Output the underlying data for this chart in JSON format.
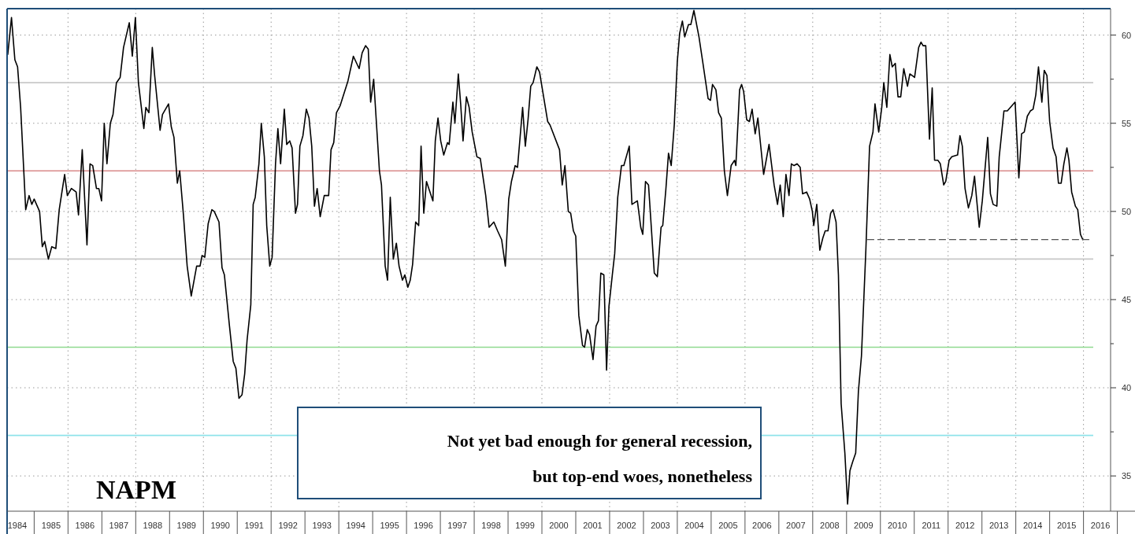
{
  "chart_data": {
    "type": "line",
    "title": "NAPM",
    "annotations": [
      "Not yet bad enough for general recession,",
      "but top-end woes, nonetheless"
    ],
    "xlim": [
      1984.2,
      2016.8
    ],
    "ylim": [
      33,
      61.5
    ],
    "xticks": [
      {
        "value": 1984.5,
        "label": "1984"
      },
      {
        "value": 1985.5,
        "label": "1985"
      },
      {
        "value": 1986,
        "label": null
      },
      {
        "value": 1986.5,
        "label": "1986"
      },
      {
        "value": 1987.5,
        "label": "1987"
      },
      {
        "value": 1988,
        "label": null
      },
      {
        "value": 1988.5,
        "label": "1988"
      },
      {
        "value": 1989.5,
        "label": "1989"
      },
      {
        "value": 1990,
        "label": null
      },
      {
        "value": 1990.5,
        "label": "1990"
      },
      {
        "value": 1991.5,
        "label": "1991"
      },
      {
        "value": 1992,
        "label": null
      },
      {
        "value": 1992.5,
        "label": "1992"
      },
      {
        "value": 1993.5,
        "label": "1993"
      },
      {
        "value": 1994,
        "label": null
      },
      {
        "value": 1994.5,
        "label": "1994"
      },
      {
        "value": 1995.5,
        "label": "1995"
      },
      {
        "value": 1996,
        "label": null
      },
      {
        "value": 1996.5,
        "label": "1996"
      },
      {
        "value": 1997.5,
        "label": "1997"
      },
      {
        "value": 1998,
        "label": null
      },
      {
        "value": 1998.5,
        "label": "1998"
      },
      {
        "value": 1999.5,
        "label": "1999"
      },
      {
        "value": 2000,
        "label": null
      },
      {
        "value": 2000.5,
        "label": "2000"
      },
      {
        "value": 2001.5,
        "label": "2001"
      },
      {
        "value": 2002,
        "label": null
      },
      {
        "value": 2002.5,
        "label": "2002"
      },
      {
        "value": 2003.5,
        "label": "2003"
      },
      {
        "value": 2004,
        "label": null
      },
      {
        "value": 2004.5,
        "label": "2004"
      },
      {
        "value": 2005.5,
        "label": "2005"
      },
      {
        "value": 2006,
        "label": null
      },
      {
        "value": 2006.5,
        "label": "2006"
      },
      {
        "value": 2007.5,
        "label": "2007"
      },
      {
        "value": 2008,
        "label": null
      },
      {
        "value": 2008.5,
        "label": "2008"
      },
      {
        "value": 2009.5,
        "label": "2009"
      },
      {
        "value": 2010,
        "label": null
      },
      {
        "value": 2010.5,
        "label": "2010"
      },
      {
        "value": 2011.5,
        "label": "2011"
      },
      {
        "value": 2012,
        "label": null
      },
      {
        "value": 2012.5,
        "label": "2012"
      },
      {
        "value": 2013.5,
        "label": "2013"
      },
      {
        "value": 2014,
        "label": null
      },
      {
        "value": 2014.5,
        "label": "2014"
      },
      {
        "value": 2015.5,
        "label": "2015"
      },
      {
        "value": 2016,
        "label": null
      },
      {
        "value": 2016.5,
        "label": "2016"
      }
    ],
    "yticks": [
      60,
      {
        "value": 57.5,
        "label": null
      },
      55,
      {
        "value": 52.5,
        "label": null
      },
      50,
      {
        "value": 47.5,
        "label": null
      },
      45,
      {
        "value": 42.5,
        "label": null
      },
      40,
      {
        "value": 37.5,
        "label": null
      },
      35
    ],
    "grid": true,
    "ref_lines": [
      {
        "axis": "y",
        "value": 57.3,
        "color": "#c8c8c8"
      },
      {
        "axis": "y",
        "value": 52.3,
        "color": "#d98a8a"
      },
      {
        "axis": "y",
        "value": 47.3,
        "color": "#c8c8c8"
      },
      {
        "axis": "y",
        "value": 42.3,
        "color": "#8fd98f"
      },
      {
        "axis": "y",
        "value": 37.3,
        "color": "#8ee3ea"
      }
    ],
    "series": [
      {
        "color": "#000000",
        "line_style": "solid",
        "x": [
          1984.22,
          1984.33,
          1984.43,
          1984.51,
          1984.6,
          1984.75,
          1984.85,
          1984.93,
          1985.0,
          1985.16,
          1985.24,
          1985.31,
          1985.42,
          1985.52,
          1985.64,
          1985.74,
          1985.9,
          1985.98,
          1986.1,
          1986.24,
          1986.31,
          1986.42,
          1986.56,
          1986.65,
          1986.73,
          1986.84,
          1986.91,
          1986.99,
          1987.07,
          1987.15,
          1987.25,
          1987.33,
          1987.43,
          1987.54,
          1987.64,
          1987.81,
          1987.9,
          1987.99,
          1988.08,
          1988.24,
          1988.3,
          1988.39,
          1988.49,
          1988.56,
          1988.72,
          1988.79,
          1988.97,
          1989.05,
          1989.13,
          1989.23,
          1989.3,
          1989.41,
          1989.52,
          1989.64,
          1989.8,
          1989.9,
          1989.96,
          1990.04,
          1990.14,
          1990.25,
          1990.32,
          1990.46,
          1990.55,
          1990.62,
          1990.77,
          1990.88,
          1990.96,
          1991.05,
          1991.14,
          1991.22,
          1991.29,
          1991.4,
          1991.47,
          1991.53,
          1991.64,
          1991.71,
          1991.8,
          1991.87,
          1991.96,
          1992.03,
          1992.13,
          1992.2,
          1992.28,
          1992.39,
          1992.46,
          1992.55,
          1992.62,
          1992.72,
          1992.78,
          1992.85,
          1992.94,
          1993.04,
          1993.12,
          1993.2,
          1993.28,
          1993.36,
          1993.45,
          1993.57,
          1993.7,
          1993.77,
          1993.85,
          1993.93,
          1994.04,
          1994.27,
          1994.43,
          1994.6,
          1994.69,
          1994.79,
          1994.87,
          1994.94,
          1995.03,
          1995.2,
          1995.26,
          1995.37,
          1995.44,
          1995.52,
          1995.61,
          1995.7,
          1995.78,
          1995.88,
          1995.95,
          1996.04,
          1996.11,
          1996.18,
          1996.27,
          1996.36,
          1996.43,
          1996.51,
          1996.59,
          1996.78,
          1996.85,
          1996.93,
          1997.01,
          1997.1,
          1997.21,
          1997.26,
          1997.37,
          1997.43,
          1997.53,
          1997.6,
          1997.67,
          1997.77,
          1997.85,
          1997.94,
          1998.08,
          1998.18,
          1998.34,
          1998.44,
          1998.58,
          1998.69,
          1998.81,
          1998.92,
          1999.02,
          1999.1,
          1999.21,
          1999.28,
          1999.43,
          1999.51,
          1999.59,
          1999.67,
          1999.74,
          1999.85,
          1999.93,
          2000.17,
          2000.24,
          2000.52,
          2000.6,
          2000.68,
          2000.78,
          2000.85,
          2000.93,
          2001.0,
          2001.09,
          2001.2,
          2001.26,
          2001.34,
          2001.41,
          2001.51,
          2001.6,
          2001.67,
          2001.74,
          2001.83,
          2001.91,
          2001.98,
          2002.08,
          2002.15,
          2002.24,
          2002.35,
          2002.42,
          2002.58,
          2002.66,
          2002.82,
          2002.92,
          2002.98,
          2003.06,
          2003.15,
          2003.32,
          2003.41,
          2003.52,
          2003.57,
          2003.66,
          2003.74,
          2003.82,
          2003.91,
          2004.0,
          2004.07,
          2004.15,
          2004.22,
          2004.33,
          2004.4,
          2004.49,
          2004.64,
          2004.75,
          2004.91,
          2004.98,
          2005.04,
          2005.14,
          2005.22,
          2005.3,
          2005.39,
          2005.48,
          2005.59,
          2005.69,
          2005.73,
          2005.84,
          2005.9,
          2005.96,
          2006.05,
          2006.13,
          2006.21,
          2006.3,
          2006.38,
          2006.55,
          2006.71,
          2006.86,
          2006.96,
          2007.04,
          2007.13,
          2007.21,
          2007.3,
          2007.37,
          2007.45,
          2007.54,
          2007.63,
          2007.7,
          2007.82,
          2007.91,
          2007.99,
          2008.03,
          2008.12,
          2008.21,
          2008.3,
          2008.37,
          2008.45,
          2008.53,
          2008.6,
          2008.69,
          2008.76,
          2008.84,
          2008.95,
          2009.03,
          2009.1,
          2009.18,
          2009.27,
          2009.35,
          2009.44,
          2009.57,
          2009.68,
          2009.78,
          2009.84,
          2009.95,
          2010.04,
          2010.1,
          2010.19,
          2010.28,
          2010.35,
          2010.44,
          2010.52,
          2010.6,
          2010.69,
          2010.8,
          2010.87,
          2011.01,
          2011.13,
          2011.2,
          2011.26,
          2011.34,
          2011.45,
          2011.53,
          2011.6,
          2011.7,
          2011.77,
          2011.87,
          2011.93,
          2012.03,
          2012.11,
          2012.28,
          2012.35,
          2012.42,
          2012.5,
          2012.6,
          2012.7,
          2012.78,
          2012.92,
          2013.01,
          2013.17,
          2013.25,
          2013.33,
          2013.44,
          2013.51,
          2013.65,
          2013.75,
          2013.98,
          2014.09,
          2014.17,
          2014.25,
          2014.34,
          2014.43,
          2014.51,
          2014.59,
          2014.67,
          2014.77,
          2014.84,
          2014.92,
          2015.0,
          2015.1,
          2015.19,
          2015.26,
          2015.34,
          2015.42,
          2015.51,
          2015.57,
          2015.65,
          2015.76,
          2015.83,
          2015.91,
          2015.98
        ],
        "values": [
          58.9,
          61.0,
          58.6,
          58.2,
          55.9,
          50.1,
          50.9,
          50.4,
          50.7,
          50.0,
          48.0,
          48.3,
          47.3,
          48.0,
          47.9,
          50.1,
          52.1,
          50.9,
          51.3,
          51.1,
          49.8,
          53.5,
          48.1,
          52.7,
          52.6,
          51.3,
          51.3,
          50.6,
          55.0,
          52.7,
          55.0,
          55.5,
          57.3,
          57.6,
          59.3,
          60.7,
          58.8,
          61.0,
          57.3,
          54.7,
          55.9,
          55.6,
          59.3,
          57.7,
          54.6,
          55.5,
          56.1,
          54.8,
          54.2,
          51.6,
          52.3,
          49.8,
          46.9,
          45.2,
          46.9,
          46.9,
          47.5,
          47.4,
          49.3,
          50.1,
          50.0,
          49.4,
          46.8,
          46.4,
          43.5,
          41.5,
          41.1,
          39.4,
          39.6,
          40.8,
          42.7,
          44.7,
          50.4,
          50.8,
          52.7,
          55.0,
          53.1,
          49.2,
          46.9,
          47.4,
          52.7,
          54.7,
          52.7,
          55.8,
          53.8,
          54.0,
          53.6,
          49.9,
          50.4,
          53.7,
          54.3,
          55.8,
          55.3,
          53.7,
          50.3,
          51.3,
          49.7,
          50.9,
          50.9,
          53.5,
          53.9,
          55.6,
          56.0,
          57.4,
          58.8,
          58.1,
          59.0,
          59.4,
          59.2,
          56.2,
          57.5,
          52.3,
          51.5,
          46.9,
          46.1,
          50.8,
          47.3,
          48.2,
          46.9,
          46.1,
          46.4,
          45.7,
          46.1,
          47.0,
          49.4,
          49.2,
          53.7,
          49.9,
          51.7,
          50.6,
          54.0,
          55.3,
          54.0,
          53.2,
          53.9,
          53.8,
          56.2,
          55.0,
          57.8,
          56.1,
          54.0,
          56.5,
          55.9,
          54.5,
          53.1,
          53.0,
          50.9,
          49.1,
          49.4,
          48.9,
          48.4,
          46.9,
          50.7,
          51.7,
          52.6,
          52.5,
          55.9,
          53.7,
          55.2,
          57.1,
          57.3,
          58.2,
          57.9,
          55.1,
          54.9,
          53.5,
          51.5,
          52.6,
          50.0,
          49.9,
          48.9,
          48.6,
          44.1,
          42.4,
          42.3,
          43.3,
          43.0,
          41.6,
          43.5,
          43.8,
          46.5,
          46.4,
          41.0,
          44.6,
          46.4,
          47.6,
          50.8,
          52.6,
          52.6,
          53.7,
          50.4,
          50.6,
          49.1,
          48.7,
          51.7,
          51.5,
          46.5,
          46.3,
          49.1,
          49.2,
          51.2,
          53.3,
          52.6,
          54.9,
          58.5,
          60.1,
          60.8,
          59.9,
          60.6,
          60.6,
          61.4,
          59.9,
          58.5,
          56.4,
          56.3,
          57.2,
          56.9,
          55.6,
          55.3,
          52.3,
          50.9,
          52.6,
          52.9,
          52.6,
          56.9,
          57.2,
          56.8,
          55.2,
          55.1,
          55.8,
          54.4,
          55.3,
          52.1,
          53.8,
          51.5,
          50.4,
          51.5,
          49.7,
          52.1,
          50.9,
          52.7,
          52.6,
          52.7,
          52.5,
          51.0,
          51.1,
          50.7,
          50.0,
          49.2,
          50.4,
          47.8,
          48.5,
          48.9,
          48.9,
          49.9,
          50.1,
          49.4,
          46.4,
          39.1,
          36.3,
          33.4,
          35.3,
          35.8,
          36.3,
          39.8,
          41.8,
          47.8,
          53.7,
          54.5,
          56.1,
          54.5,
          55.9,
          57.3,
          55.9,
          58.9,
          58.2,
          58.4,
          56.5,
          56.5,
          58.1,
          57.1,
          57.8,
          57.6,
          59.3,
          59.6,
          59.4,
          59.4,
          54.1,
          57.0,
          52.9,
          52.9,
          52.7,
          51.5,
          51.7,
          52.9,
          53.1,
          53.2,
          54.3,
          53.7,
          51.3,
          50.2,
          50.9,
          52.0,
          49.1,
          50.6,
          54.2,
          51.0,
          50.4,
          50.3,
          53.1,
          55.7,
          55.7,
          56.2,
          51.9,
          54.4,
          54.5,
          55.4,
          55.7,
          55.8,
          56.6,
          58.2,
          56.2,
          58.0,
          57.7,
          55.1,
          53.6,
          53.1,
          51.6,
          51.6,
          52.7,
          53.6,
          52.9,
          51.1,
          50.3,
          50.1,
          48.7,
          48.4
        ]
      },
      {
        "color": "#555555",
        "line_style": "dashed",
        "x": [
          2009.62,
          2016.25
        ],
        "values": [
          48.4,
          48.4
        ]
      }
    ]
  }
}
